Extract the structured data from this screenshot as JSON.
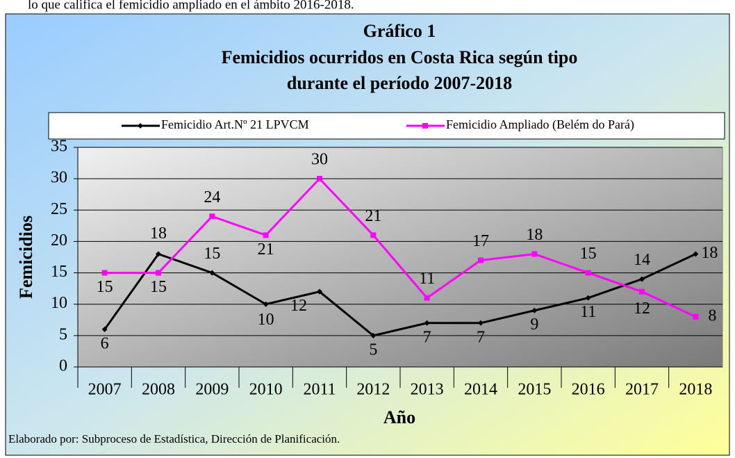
{
  "context_text": "lo que califica el femicidio ampliado en el ámbito 2016-2018.",
  "chart_data": {
    "type": "line",
    "title": [
      "Gráfico  1",
      "Femicidios ocurridos en Costa Rica según tipo",
      "durante el período 2007-2018"
    ],
    "x_label": "Año",
    "y_label": "Femicidios",
    "categories": [
      "2007",
      "2008",
      "2009",
      "2010",
      "2011",
      "2012",
      "2013",
      "2014",
      "2015",
      "2016",
      "2017",
      "2018"
    ],
    "series": [
      {
        "name": "Femicidio Art.Nº 21 LPVCM",
        "color": "#000000",
        "marker": "diamond",
        "values": [
          6,
          18,
          15,
          10,
          12,
          5,
          7,
          7,
          9,
          11,
          14,
          18
        ]
      },
      {
        "name": "Femicidio Ampliado (Belém do Pará)",
        "color": "#ff00ff",
        "marker": "square",
        "values": [
          15,
          15,
          24,
          21,
          30,
          21,
          11,
          17,
          18,
          15,
          12,
          8
        ]
      }
    ],
    "ylim": [
      0,
      35
    ],
    "yticks": [
      0,
      5,
      10,
      15,
      20,
      25,
      30,
      35
    ],
    "grid": true,
    "legend": "top",
    "source": "Elaborado por: Subproceso de Estadística, Dirección de Planificación."
  }
}
